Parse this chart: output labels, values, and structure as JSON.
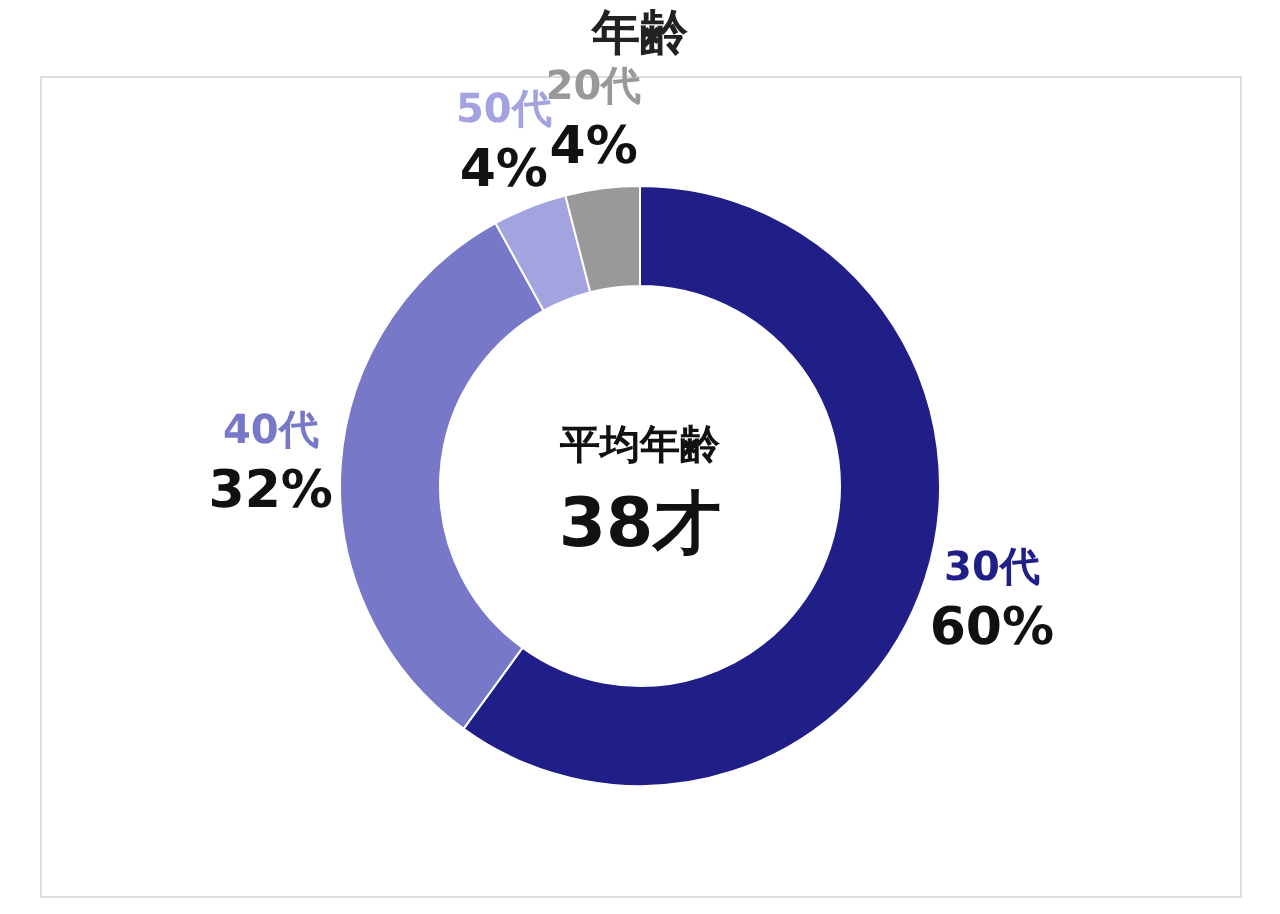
{
  "chart_data": {
    "type": "donut",
    "title": "年齢",
    "categories": [
      "30代",
      "40代",
      "50代",
      "20代"
    ],
    "values": [
      60,
      32,
      4,
      4
    ],
    "colors": [
      "#1f1f87",
      "#7878c8",
      "#a3a3e0",
      "#999999"
    ],
    "value_labels": [
      "60%",
      "32%",
      "4%",
      "4%"
    ],
    "annotations": [
      "平均年齢",
      "38才"
    ]
  }
}
